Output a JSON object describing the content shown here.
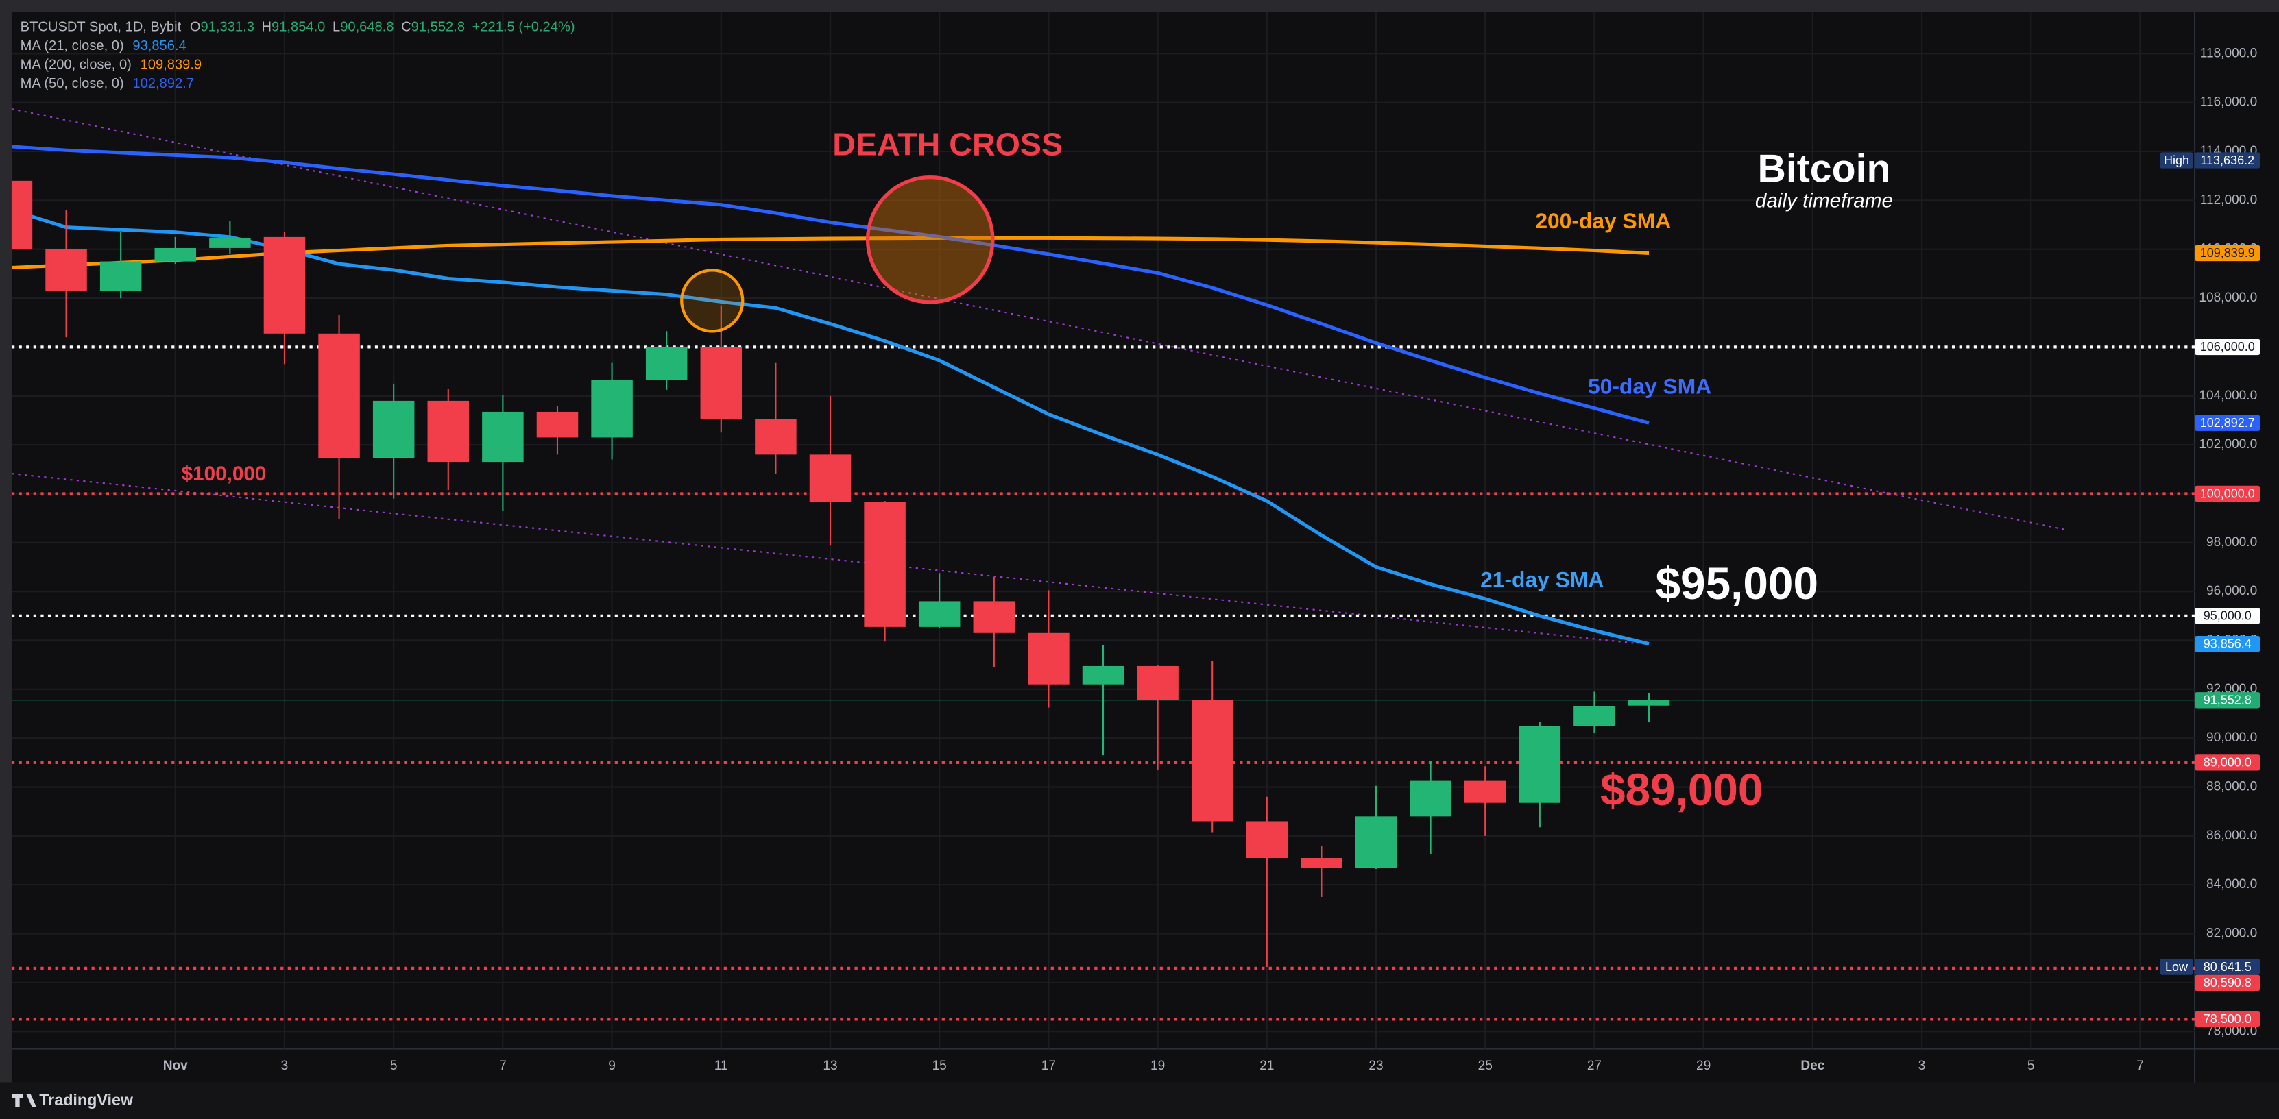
{
  "chart_data": {
    "type": "candlestick",
    "legend": {
      "symbol": "BTCUSDT Spot, 1D, Bybit",
      "fields": [
        {
          "key": "O",
          "value": "91,331.3"
        },
        {
          "key": "H",
          "value": "91,854.0"
        },
        {
          "key": "L",
          "value": "90,648.8"
        },
        {
          "key": "C",
          "value": "91,552.8"
        }
      ],
      "change": "+221.5 (+0.24%)",
      "color": "#22ab73"
    },
    "x": [
      "Oct 29",
      "Oct 30",
      "Oct 31",
      "Nov 1",
      "Nov 2",
      "Nov 3",
      "Nov 4",
      "Nov 5",
      "Nov 6",
      "Nov 7",
      "Nov 8",
      "Nov 9",
      "Nov 10",
      "Nov 11",
      "Nov 12",
      "Nov 13",
      "Nov 14",
      "Nov 15",
      "Nov 16",
      "Nov 17",
      "Nov 18",
      "Nov 19",
      "Nov 20",
      "Nov 21",
      "Nov 22",
      "Nov 23",
      "Nov 24",
      "Nov 25",
      "Nov 26",
      "Nov 27",
      "Nov 28"
    ],
    "open": [
      112800,
      110000,
      108300,
      109500,
      110050,
      110500,
      106550,
      101450,
      103800,
      101300,
      103350,
      102300,
      104650,
      106000,
      103050,
      101600,
      99650,
      94550,
      95600,
      94300,
      92200,
      92950,
      91550,
      86600,
      85100,
      84700,
      86800,
      88250,
      87350,
      90500,
      91331.3
    ],
    "high": [
      113800,
      111600,
      110700,
      110500,
      111150,
      110700,
      107300,
      104500,
      104300,
      104050,
      103600,
      105350,
      106650,
      107700,
      105350,
      104000,
      99700,
      96750,
      96600,
      96050,
      93800,
      93000,
      93150,
      87600,
      85600,
      88050,
      89050,
      88850,
      90650,
      91900,
      91854
    ],
    "low": [
      109500,
      106400,
      108000,
      109400,
      109800,
      105300,
      98950,
      99800,
      100150,
      99300,
      101600,
      101400,
      104250,
      102500,
      100800,
      97900,
      93950,
      94500,
      92900,
      91250,
      89300,
      88700,
      86150,
      80641.5,
      83500,
      84650,
      85250,
      86000,
      86350,
      90200,
      90648.8
    ],
    "close": [
      110000,
      108300,
      109500,
      110050,
      110450,
      106550,
      101450,
      103800,
      101300,
      103350,
      102300,
      104650,
      106000,
      103050,
      101600,
      99650,
      94550,
      95600,
      94300,
      92200,
      92950,
      91550,
      86600,
      85100,
      84700,
      86800,
      88250,
      87350,
      90500,
      91300,
      91552.8
    ],
    "up_color": "#22b573",
    "down_color": "#f23d4b",
    "moving_averages": [
      {
        "name": "MA (21, close, 0)",
        "color": "#2196f3",
        "legend_value": "93,856.4",
        "values": [
          111600,
          110900,
          110800,
          110700,
          110500,
          110000,
          109400,
          109150,
          108800,
          108650,
          108450,
          108300,
          108150,
          107850,
          107600,
          106950,
          106250,
          105450,
          104350,
          103250,
          102400,
          101600,
          100700,
          99700,
          98300,
          97000,
          96300,
          95700,
          95000,
          94400,
          93856.4
        ]
      },
      {
        "name": "MA (200, close, 0)",
        "color": "#ff9800",
        "legend_value": "109,839.9",
        "values": [
          109250,
          109350,
          109450,
          109550,
          109700,
          109850,
          109950,
          110050,
          110150,
          110200,
          110250,
          110300,
          110350,
          110400,
          110420,
          110440,
          110450,
          110460,
          110460,
          110460,
          110450,
          110440,
          110420,
          110380,
          110330,
          110270,
          110200,
          110120,
          110040,
          109950,
          109839.9
        ]
      },
      {
        "name": "MA (50, close, 0)",
        "color": "#2962ff",
        "legend_value": "102,892.7",
        "values": [
          114200,
          114050,
          113950,
          113850,
          113750,
          113550,
          113300,
          113070,
          112830,
          112600,
          112400,
          112180,
          112000,
          111820,
          111480,
          111100,
          110800,
          110510,
          110160,
          109800,
          109420,
          109030,
          108420,
          107720,
          106950,
          106170,
          105450,
          104750,
          104100,
          103500,
          102892.7
        ]
      }
    ],
    "xlim": [
      "Oct 29",
      "Dec 8"
    ],
    "xticks": [
      {
        "value": "Nov 1",
        "label": "Nov"
      },
      {
        "value": "Nov 3",
        "label": "3"
      },
      {
        "value": "Nov 5",
        "label": "5"
      },
      {
        "value": "Nov 7",
        "label": "7"
      },
      {
        "value": "Nov 9",
        "label": "9"
      },
      {
        "value": "Nov 11",
        "label": "11"
      },
      {
        "value": "Nov 13",
        "label": "13"
      },
      {
        "value": "Nov 15",
        "label": "15"
      },
      {
        "value": "Nov 17",
        "label": "17"
      },
      {
        "value": "Nov 19",
        "label": "19"
      },
      {
        "value": "Nov 21",
        "label": "21"
      },
      {
        "value": "Nov 23",
        "label": "23"
      },
      {
        "value": "Nov 25",
        "label": "25"
      },
      {
        "value": "Nov 27",
        "label": "27"
      },
      {
        "value": "Nov 29",
        "label": "29"
      },
      {
        "value": "Dec 1",
        "label": "Dec"
      },
      {
        "value": "Dec 3",
        "label": "3"
      },
      {
        "value": "Dec 5",
        "label": "5"
      },
      {
        "value": "Dec 7",
        "label": "7"
      }
    ],
    "ylim": [
      77290,
      119720
    ],
    "yticks": [
      {
        "value": 78000,
        "label": "78,000.0"
      },
      {
        "value": 80000,
        "label": "80,000.0"
      },
      {
        "value": 82000,
        "label": "82,000.0"
      },
      {
        "value": 84000,
        "label": "84,000.0"
      },
      {
        "value": 86000,
        "label": "86,000.0"
      },
      {
        "value": 88000,
        "label": "88,000.0"
      },
      {
        "value": 90000,
        "label": "90,000.0"
      },
      {
        "value": 92000,
        "label": "92,000.0"
      },
      {
        "value": 94000,
        "label": "94,000.0"
      },
      {
        "value": 96000,
        "label": "96,000.0"
      },
      {
        "value": 98000,
        "label": "98,000.0"
      },
      {
        "value": 100000,
        "label": "100,000.0"
      },
      {
        "value": 102000,
        "label": "102,000.0"
      },
      {
        "value": 104000,
        "label": "104,000.0"
      },
      {
        "value": 106000,
        "label": "106,000.0"
      },
      {
        "value": 108000,
        "label": "108,000.0"
      },
      {
        "value": 110000,
        "label": "110,000.0"
      },
      {
        "value": 112000,
        "label": "112,000.0"
      },
      {
        "value": 114000,
        "label": "114,000.0"
      },
      {
        "value": 116000,
        "label": "116,000.0"
      },
      {
        "value": 118000,
        "label": "118,000.0"
      }
    ],
    "grid": true,
    "price_tags": [
      {
        "value": 113636.2,
        "label": "113,636.2",
        "prefix": "High",
        "color": "#1e3a6e"
      },
      {
        "value": 109839.9,
        "label": "109,839.9",
        "color": "#ff9800"
      },
      {
        "value": 106000,
        "label": "106,000.0",
        "color": "#ffffff",
        "line": "dotted"
      },
      {
        "value": 102892.7,
        "label": "102,892.7",
        "color": "#2962ff"
      },
      {
        "value": 100000,
        "label": "100,000.0",
        "color": "#f23d4b",
        "line": "dotted"
      },
      {
        "value": 95000,
        "label": "95,000.0",
        "color": "#ffffff",
        "line": "dotted"
      },
      {
        "value": 93856.4,
        "label": "93,856.4",
        "color": "#2196f3"
      },
      {
        "value": 91552.8,
        "label": "91,552.8",
        "color": "#22ab73",
        "line": "solid"
      },
      {
        "value": 89000,
        "label": "89,000.0",
        "color": "#f23d4b",
        "line": "dotted"
      },
      {
        "value": 80641.5,
        "label": "80,641.5",
        "prefix": "Low",
        "color": "#1e3a6e"
      },
      {
        "value": 80590.8,
        "label": "80,590.8",
        "color": "#f23d4b",
        "line": "dotted"
      },
      {
        "value": 78500,
        "label": "78,500.0",
        "color": "#f23d4b",
        "line": "dotted"
      }
    ],
    "annotations": [
      "DEATH CROSS",
      "Bitcoin",
      "daily timeframe",
      "200-day SMA",
      "50-day SMA",
      "21-day SMA",
      "$95,000",
      "$89,000",
      "$100,000"
    ],
    "branding": "TradingView"
  }
}
